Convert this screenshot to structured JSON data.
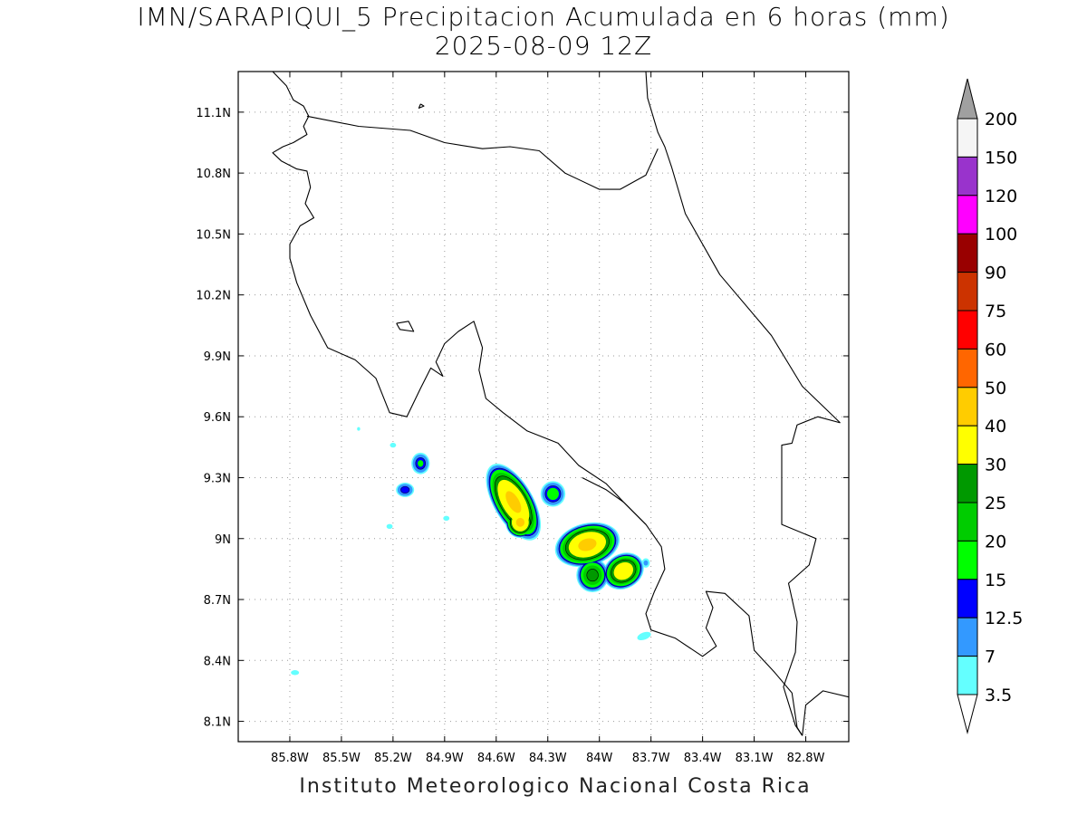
{
  "title": {
    "line1": "IMN/SARAPIQUI_5 Precipitacion Acumulada en 6 horas (mm)",
    "line2": "2025-08-09 12Z"
  },
  "credit": "Instituto Meteorologico Nacional Costa Rica",
  "map": {
    "lon_min": -86.1,
    "lon_max": -82.55,
    "lat_min": 8.0,
    "lat_max": 11.3,
    "lon_ticks": [
      {
        "value": -85.8,
        "label": "85.8W"
      },
      {
        "value": -85.5,
        "label": "85.5W"
      },
      {
        "value": -85.2,
        "label": "85.2W"
      },
      {
        "value": -84.9,
        "label": "84.9W"
      },
      {
        "value": -84.6,
        "label": "84.6W"
      },
      {
        "value": -84.3,
        "label": "84.3W"
      },
      {
        "value": -84.0,
        "label": "84W"
      },
      {
        "value": -83.7,
        "label": "83.7W"
      },
      {
        "value": -83.4,
        "label": "83.4W"
      },
      {
        "value": -83.1,
        "label": "83.1W"
      },
      {
        "value": -82.8,
        "label": "82.8W"
      }
    ],
    "lat_ticks": [
      {
        "value": 8.1,
        "label": "8.1N"
      },
      {
        "value": 8.4,
        "label": "8.4N"
      },
      {
        "value": 8.7,
        "label": "8.7N"
      },
      {
        "value": 9.0,
        "label": "9N"
      },
      {
        "value": 9.3,
        "label": "9.3N"
      },
      {
        "value": 9.6,
        "label": "9.6N"
      },
      {
        "value": 9.9,
        "label": "9.9N"
      },
      {
        "value": 10.2,
        "label": "10.2N"
      },
      {
        "value": 10.5,
        "label": "10.5N"
      },
      {
        "value": 10.8,
        "label": "10.8N"
      },
      {
        "value": 11.1,
        "label": "11.1N"
      }
    ],
    "grid": true,
    "coastline": [
      [
        -85.9,
        11.3
      ],
      [
        -85.82,
        11.23
      ],
      [
        -85.78,
        11.16
      ],
      [
        -85.72,
        11.13
      ],
      [
        -85.69,
        11.08
      ],
      [
        -85.72,
        11.03
      ],
      [
        -85.7,
        10.99
      ],
      [
        -85.78,
        10.95
      ],
      [
        -85.84,
        10.93
      ],
      [
        -85.9,
        10.9
      ],
      [
        -85.85,
        10.86
      ],
      [
        -85.76,
        10.82
      ],
      [
        -85.7,
        10.81
      ],
      [
        -85.68,
        10.73
      ],
      [
        -85.71,
        10.65
      ],
      [
        -85.66,
        10.58
      ],
      [
        -85.74,
        10.54
      ],
      [
        -85.8,
        10.45
      ],
      [
        -85.8,
        10.38
      ],
      [
        -85.76,
        10.26
      ],
      [
        -85.68,
        10.1
      ],
      [
        -85.58,
        9.94
      ],
      [
        -85.42,
        9.88
      ],
      [
        -85.3,
        9.79
      ],
      [
        -85.22,
        9.62
      ],
      [
        -85.12,
        9.6
      ],
      [
        -85.04,
        9.74
      ],
      [
        -84.98,
        9.84
      ],
      [
        -84.91,
        9.8
      ],
      [
        -84.95,
        9.87
      ],
      [
        -84.9,
        9.96
      ],
      [
        -84.82,
        10.02
      ],
      [
        -84.73,
        10.07
      ],
      [
        -84.68,
        9.94
      ],
      [
        -84.7,
        9.83
      ],
      [
        -84.66,
        9.69
      ],
      [
        -84.56,
        9.62
      ],
      [
        -84.42,
        9.53
      ],
      [
        -84.24,
        9.47
      ],
      [
        -84.12,
        9.36
      ],
      [
        -83.96,
        9.27
      ],
      [
        -83.86,
        9.18
      ],
      [
        -83.73,
        9.07
      ],
      [
        -83.64,
        8.96
      ],
      [
        -83.62,
        8.85
      ],
      [
        -83.68,
        8.74
      ],
      [
        -83.73,
        8.63
      ],
      [
        -83.7,
        8.55
      ],
      [
        -83.56,
        8.51
      ],
      [
        -83.4,
        8.42
      ],
      [
        -83.32,
        8.47
      ],
      [
        -83.38,
        8.56
      ],
      [
        -83.34,
        8.66
      ],
      [
        -83.38,
        8.74
      ],
      [
        -83.27,
        8.73
      ],
      [
        -83.13,
        8.62
      ],
      [
        -83.1,
        8.45
      ],
      [
        -82.98,
        8.34
      ],
      [
        -82.88,
        8.24
      ],
      [
        -82.85,
        8.07
      ],
      [
        -82.82,
        8.03
      ]
    ],
    "caribbean_coast": [
      [
        -83.73,
        11.3
      ],
      [
        -83.72,
        11.17
      ],
      [
        -83.66,
        11.0
      ],
      [
        -83.62,
        10.93
      ],
      [
        -83.58,
        10.83
      ],
      [
        -83.5,
        10.6
      ],
      [
        -83.3,
        10.3
      ],
      [
        -83.0,
        10.0
      ],
      [
        -82.82,
        9.75
      ],
      [
        -82.6,
        9.57
      ]
    ],
    "nicaragua_border": [
      [
        -85.7,
        11.08
      ],
      [
        -85.4,
        11.03
      ],
      [
        -85.1,
        11.01
      ],
      [
        -84.9,
        10.95
      ],
      [
        -84.68,
        10.92
      ],
      [
        -84.52,
        10.93
      ],
      [
        -84.35,
        10.91
      ],
      [
        -84.2,
        10.8
      ],
      [
        -84.0,
        10.72
      ],
      [
        -83.88,
        10.72
      ],
      [
        -83.73,
        10.79
      ],
      [
        -83.66,
        10.92
      ]
    ],
    "panama_border": [
      [
        -82.6,
        9.57
      ],
      [
        -82.73,
        9.6
      ],
      [
        -82.85,
        9.56
      ],
      [
        -82.88,
        9.47
      ],
      [
        -82.94,
        9.46
      ],
      [
        -82.94,
        9.07
      ],
      [
        -82.74,
        9.0
      ],
      [
        -82.78,
        8.87
      ],
      [
        -82.9,
        8.78
      ],
      [
        -82.85,
        8.59
      ],
      [
        -82.86,
        8.44
      ],
      [
        -82.93,
        8.27
      ],
      [
        -82.86,
        8.08
      ],
      [
        -82.82,
        8.03
      ]
    ],
    "pacific_features": [
      [
        [
          -83.73,
          9.07
        ],
        [
          -83.86,
          9.18
        ],
        [
          -83.96,
          9.24
        ],
        [
          -84.1,
          9.3
        ]
      ],
      [
        [
          -82.82,
          8.03
        ],
        [
          -82.8,
          8.18
        ],
        [
          -82.7,
          8.25
        ],
        [
          -82.55,
          8.22
        ]
      ]
    ],
    "island": [
      [
        -85.18,
        10.06
      ],
      [
        -85.11,
        10.07
      ],
      [
        -85.08,
        10.02
      ],
      [
        -85.16,
        10.03
      ],
      [
        -85.18,
        10.06
      ]
    ],
    "lake_islet": [
      [
        -85.04,
        11.14
      ],
      [
        -85.02,
        11.13
      ],
      [
        -85.05,
        11.12
      ],
      [
        -85.04,
        11.14
      ]
    ]
  },
  "precip_cells": [
    {
      "lon": -84.5,
      "lat": 9.18,
      "rx": 0.12,
      "ry": 0.22,
      "rot": -30,
      "peak": 40
    },
    {
      "lon": -84.46,
      "lat": 9.08,
      "rx": 0.09,
      "ry": 0.08,
      "rot": 0,
      "peak": 40
    },
    {
      "lon": -84.07,
      "lat": 8.97,
      "rx": 0.2,
      "ry": 0.11,
      "rot": -15,
      "peak": 40
    },
    {
      "lon": -83.86,
      "lat": 8.84,
      "rx": 0.13,
      "ry": 0.09,
      "rot": -30,
      "peak": 35
    },
    {
      "lon": -84.04,
      "lat": 8.82,
      "rx": 0.1,
      "ry": 0.09,
      "rot": 0,
      "peak": 26
    },
    {
      "lon": -84.27,
      "lat": 9.22,
      "rx": 0.08,
      "ry": 0.07,
      "rot": 0,
      "peak": 17
    },
    {
      "lon": -85.04,
      "lat": 9.37,
      "rx": 0.06,
      "ry": 0.06,
      "rot": 0,
      "peak": 15
    },
    {
      "lon": -85.13,
      "lat": 9.24,
      "rx": 0.06,
      "ry": 0.04,
      "rot": 0,
      "peak": 14
    },
    {
      "lon": -83.74,
      "lat": 8.52,
      "rx": 0.07,
      "ry": 0.03,
      "rot": -20,
      "peak": 5
    },
    {
      "lon": -83.73,
      "lat": 8.88,
      "rx": 0.03,
      "ry": 0.03,
      "rot": 0,
      "peak": 8
    },
    {
      "lon": -85.77,
      "lat": 8.34,
      "rx": 0.04,
      "ry": 0.02,
      "rot": 0,
      "peak": 5
    },
    {
      "lon": -85.22,
      "lat": 9.06,
      "rx": 0.03,
      "ry": 0.02,
      "rot": 0,
      "peak": 5
    },
    {
      "lon": -84.89,
      "lat": 9.1,
      "rx": 0.03,
      "ry": 0.02,
      "rot": 0,
      "peak": 5
    },
    {
      "lon": -85.2,
      "lat": 9.46,
      "rx": 0.03,
      "ry": 0.02,
      "rot": 0,
      "peak": 5
    },
    {
      "lon": -85.4,
      "lat": 9.54,
      "rx": 0.02,
      "ry": 0.02,
      "rot": 0,
      "peak": 4
    }
  ],
  "colorbar": {
    "levels": [
      "3.5",
      "7",
      "12.5",
      "15",
      "20",
      "25",
      "30",
      "40",
      "50",
      "60",
      "75",
      "90",
      "100",
      "120",
      "150",
      "200"
    ],
    "colors": [
      "#64ffff",
      "#3399ff",
      "#0000ff",
      "#00ff00",
      "#00cc00",
      "#009900",
      "#ffff00",
      "#ffcc00",
      "#ff6600",
      "#ff0000",
      "#cc3300",
      "#990000",
      "#ff00ff",
      "#9933cc",
      "#f5f5f5"
    ],
    "upper_arrow_color": "#a0a0a0",
    "lower_arrow_color": "#ffffff"
  }
}
